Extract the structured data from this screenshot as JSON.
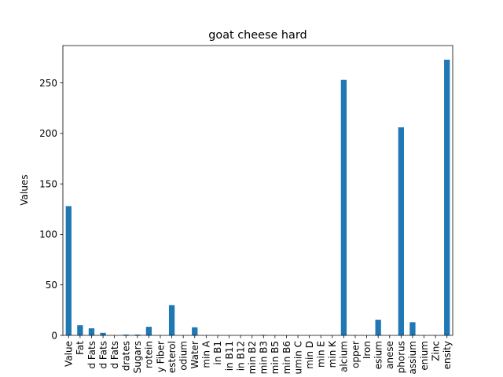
{
  "colors": {
    "bar": "#1f77b4",
    "axis": "#000000",
    "background": "#ffffff"
  },
  "chart_data": {
    "type": "bar",
    "title": "goat cheese hard",
    "xlabel": "",
    "ylabel": "Values",
    "ylim": [
      0,
      287
    ],
    "yticks": [
      0,
      50,
      100,
      150,
      200,
      250
    ],
    "grid": false,
    "legend": "none",
    "categories": [
      "Value",
      "Fat",
      "d Fats",
      "d Fats",
      "d Fats",
      "drates",
      "Sugars",
      "rotein",
      "y Fiber",
      "esterol",
      "odium",
      "Water",
      "min A",
      "in B1",
      "in B11",
      "in B12",
      "min B2",
      "min B3",
      "min B5",
      "min B6",
      "umin C",
      "min D",
      "min E",
      "min K",
      "alcium",
      "opper",
      "Iron",
      "esium",
      "anese",
      "phorus",
      "assium",
      "enium",
      "Zinc",
      "ensity"
    ],
    "values": [
      128,
      10,
      7,
      2.5,
      0,
      0.8,
      0.8,
      8.5,
      0,
      30,
      0,
      8,
      0,
      0,
      0,
      0,
      0,
      0.5,
      0,
      0,
      0,
      0,
      0,
      0,
      253,
      0,
      0,
      15.5,
      0,
      206,
      13,
      0,
      0,
      273
    ]
  }
}
